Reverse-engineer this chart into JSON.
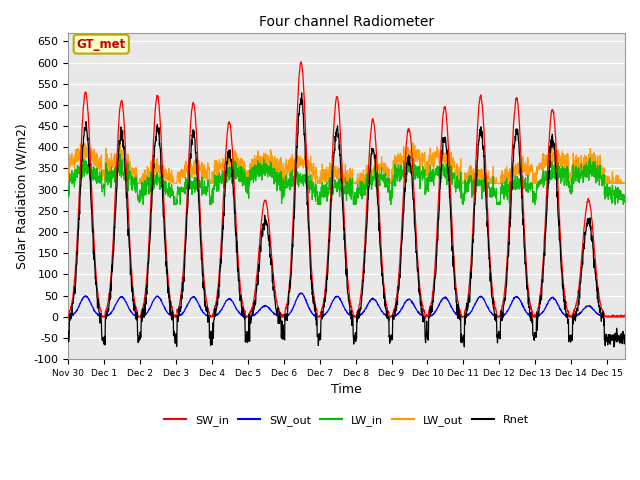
{
  "title": "Four channel Radiometer",
  "xlabel": "Time",
  "ylabel": "Solar Radiation (W/m2)",
  "ylim": [
    -100,
    670
  ],
  "yticks": [
    -100,
    -50,
    0,
    50,
    100,
    150,
    200,
    250,
    300,
    350,
    400,
    450,
    500,
    550,
    600,
    650
  ],
  "xtick_labels": [
    "Nov 30",
    "Dec 1",
    "Dec 2",
    "Dec 3",
    "Dec 4",
    "Dec 5",
    "Dec 6",
    "Dec 7",
    "Dec 8",
    "Dec 9",
    "Dec 10",
    "Dec 11",
    "Dec 12",
    "Dec 13",
    "Dec 14",
    "Dec 15"
  ],
  "legend_labels": [
    "SW_in",
    "SW_out",
    "LW_in",
    "LW_out",
    "Rnet"
  ],
  "legend_colors": [
    "#ff0000",
    "#0000ff",
    "#00bb00",
    "#ff9900",
    "#000000"
  ],
  "annotation_text": "GT_met",
  "annotation_bg": "#ffffcc",
  "annotation_border": "#bbaa00",
  "annotation_text_color": "#cc0000",
  "peaks_SWin": [
    530,
    510,
    520,
    505,
    460,
    275,
    600,
    520,
    465,
    445,
    495,
    520,
    515,
    490,
    275
  ],
  "n_points": 2000,
  "n_days": 15.5
}
